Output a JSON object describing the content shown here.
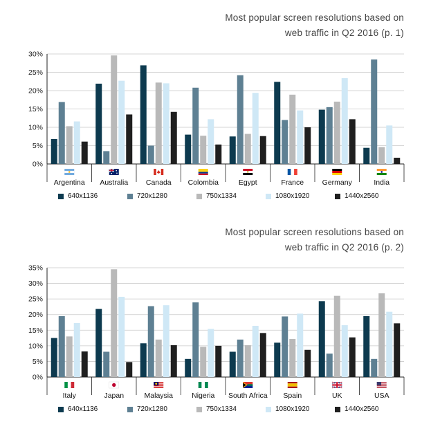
{
  "colors": {
    "640x1136": "#0d3a4f",
    "720x1280": "#5e8093",
    "750x1334": "#b9b9b9",
    "1080x1920": "#cfe8f6",
    "1440x2560": "#1f1f1f"
  },
  "chart_data": [
    {
      "type": "bar",
      "title_line1": "Most popular screen resolutions based on",
      "title_line2": "web traffic in Q2 2016 (p. 1)",
      "categories": [
        "Argentina",
        "Australia",
        "Canada",
        "Colombia",
        "Egypt",
        "France",
        "Germany",
        "India"
      ],
      "flag_icons": [
        "argentina-flag-icon",
        "australia-flag-icon",
        "canada-flag-icon",
        "colombia-flag-icon",
        "egypt-flag-icon",
        "france-flag-icon",
        "germany-flag-icon",
        "india-flag-icon"
      ],
      "yticks": [
        "0%",
        "5%",
        "10%",
        "15%",
        "20%",
        "25%",
        "30%"
      ],
      "ylim": [
        0,
        30
      ],
      "grid": true,
      "legend_position": "bottom",
      "series": [
        {
          "name": "640x1136",
          "values": [
            6.8,
            21.9,
            26.9,
            8.0,
            7.5,
            22.4,
            14.8,
            4.4
          ]
        },
        {
          "name": "720x1280",
          "values": [
            16.9,
            3.5,
            5.0,
            20.8,
            24.2,
            12.0,
            15.5,
            28.5
          ]
        },
        {
          "name": "750x1334",
          "values": [
            10.3,
            29.6,
            22.2,
            7.7,
            8.2,
            18.9,
            17.0,
            4.6
          ]
        },
        {
          "name": "1080x1920",
          "values": [
            11.6,
            22.7,
            22.0,
            12.2,
            19.4,
            14.6,
            23.4,
            10.5
          ]
        },
        {
          "name": "1440x2560",
          "values": [
            6.1,
            13.5,
            14.2,
            5.3,
            7.6,
            10.0,
            12.2,
            1.7
          ]
        }
      ]
    },
    {
      "type": "bar",
      "title_line1": "Most popular screen resolutions based on",
      "title_line2": "web traffic in Q2 2016 (p. 2)",
      "categories": [
        "Italy",
        "Japan",
        "Malaysia",
        "Nigeria",
        "South Africa",
        "Spain",
        "UK",
        "USA"
      ],
      "flag_icons": [
        "italy-flag-icon",
        "japan-flag-icon",
        "malaysia-flag-icon",
        "nigeria-flag-icon",
        "south-africa-flag-icon",
        "spain-flag-icon",
        "uk-flag-icon",
        "usa-flag-icon"
      ],
      "yticks": [
        "0%",
        "5%",
        "10%",
        "15%",
        "20%",
        "25%",
        "30%",
        "35%"
      ],
      "ylim": [
        0,
        35
      ],
      "grid": true,
      "legend_position": "bottom",
      "series": [
        {
          "name": "640x1136",
          "values": [
            12.5,
            21.8,
            10.8,
            5.8,
            8.1,
            11.0,
            24.3,
            19.5
          ]
        },
        {
          "name": "720x1280",
          "values": [
            19.5,
            8.1,
            22.7,
            23.9,
            12.0,
            19.4,
            7.5,
            5.8
          ]
        },
        {
          "name": "750x1334",
          "values": [
            13.0,
            34.5,
            12.0,
            9.7,
            10.2,
            12.2,
            26.0,
            26.8
          ]
        },
        {
          "name": "1080x1920",
          "values": [
            17.3,
            25.7,
            23.0,
            15.4,
            16.4,
            20.3,
            16.6,
            20.9
          ]
        },
        {
          "name": "1440x2560",
          "values": [
            8.2,
            4.8,
            10.2,
            10.0,
            14.1,
            8.7,
            12.7,
            17.2
          ]
        }
      ]
    }
  ]
}
